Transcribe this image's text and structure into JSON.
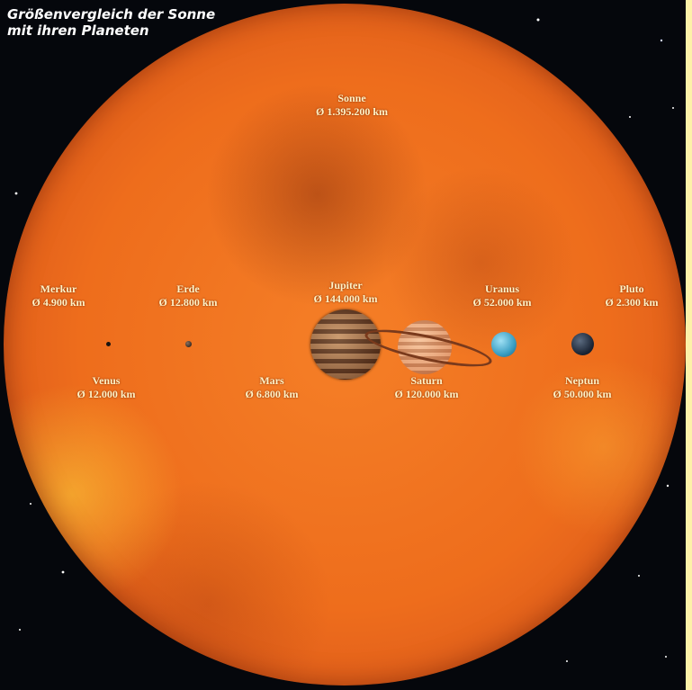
{
  "caption": {
    "line1": "Größenvergleich der Sonne",
    "line2": "mit ihren Planeten"
  },
  "sun": {
    "name": "Sonne",
    "diameter": "Ø 1.395.200 km"
  },
  "planets": [
    {
      "key": "merkur",
      "name": "Merkur",
      "diameter": "Ø 4.900 km"
    },
    {
      "key": "venus",
      "name": "Venus",
      "diameter": "Ø 12.000 km"
    },
    {
      "key": "erde",
      "name": "Erde",
      "diameter": "Ø 12.800 km"
    },
    {
      "key": "mars",
      "name": "Mars",
      "diameter": "Ø 6.800 km"
    },
    {
      "key": "jupiter",
      "name": "Jupiter",
      "diameter": "Ø 144.000 km"
    },
    {
      "key": "saturn",
      "name": "Saturn",
      "diameter": "Ø 120.000 km"
    },
    {
      "key": "uranus",
      "name": "Uranus",
      "diameter": "Ø 52.000 km"
    },
    {
      "key": "neptun",
      "name": "Neptun",
      "diameter": "Ø 50.000 km"
    },
    {
      "key": "pluto",
      "name": "Pluto",
      "diameter": "Ø 2.300 km"
    }
  ],
  "colors": {
    "space": "#05070c",
    "sun": "#ee6d1c",
    "label": "#fff3c8",
    "side_bar": "#fdf1a8"
  }
}
